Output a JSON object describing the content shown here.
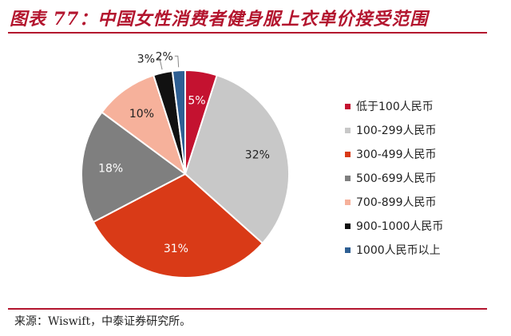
{
  "title": "图表 77：中国女性消费者健身服上衣单价接受范围",
  "source": "来源：Wiswift，中泰证券研究所。",
  "chart_data": {
    "type": "pie",
    "title": "图表 77：中国女性消费者健身服上衣单价接受范围",
    "legend_position": "right",
    "slices": [
      {
        "label": "低于100人民币",
        "value": 5,
        "display": "5%",
        "color": "#c41230"
      },
      {
        "label": "100-299人民币",
        "value": 32,
        "display": "32%",
        "color": "#c8c8c8"
      },
      {
        "label": "300-499人民币",
        "value": 31,
        "display": "31%",
        "color": "#d93a17"
      },
      {
        "label": "500-699人民币",
        "value": 18,
        "display": "18%",
        "color": "#7f7f7f"
      },
      {
        "label": "700-899人民币",
        "value": 10,
        "display": "10%",
        "color": "#f6b19b"
      },
      {
        "label": "900-1000人民币",
        "value": 3,
        "display": "3%",
        "color": "#111111"
      },
      {
        "label": "1000人民币以上",
        "value": 2,
        "display": "2%",
        "color": "#2e5f93"
      }
    ]
  }
}
